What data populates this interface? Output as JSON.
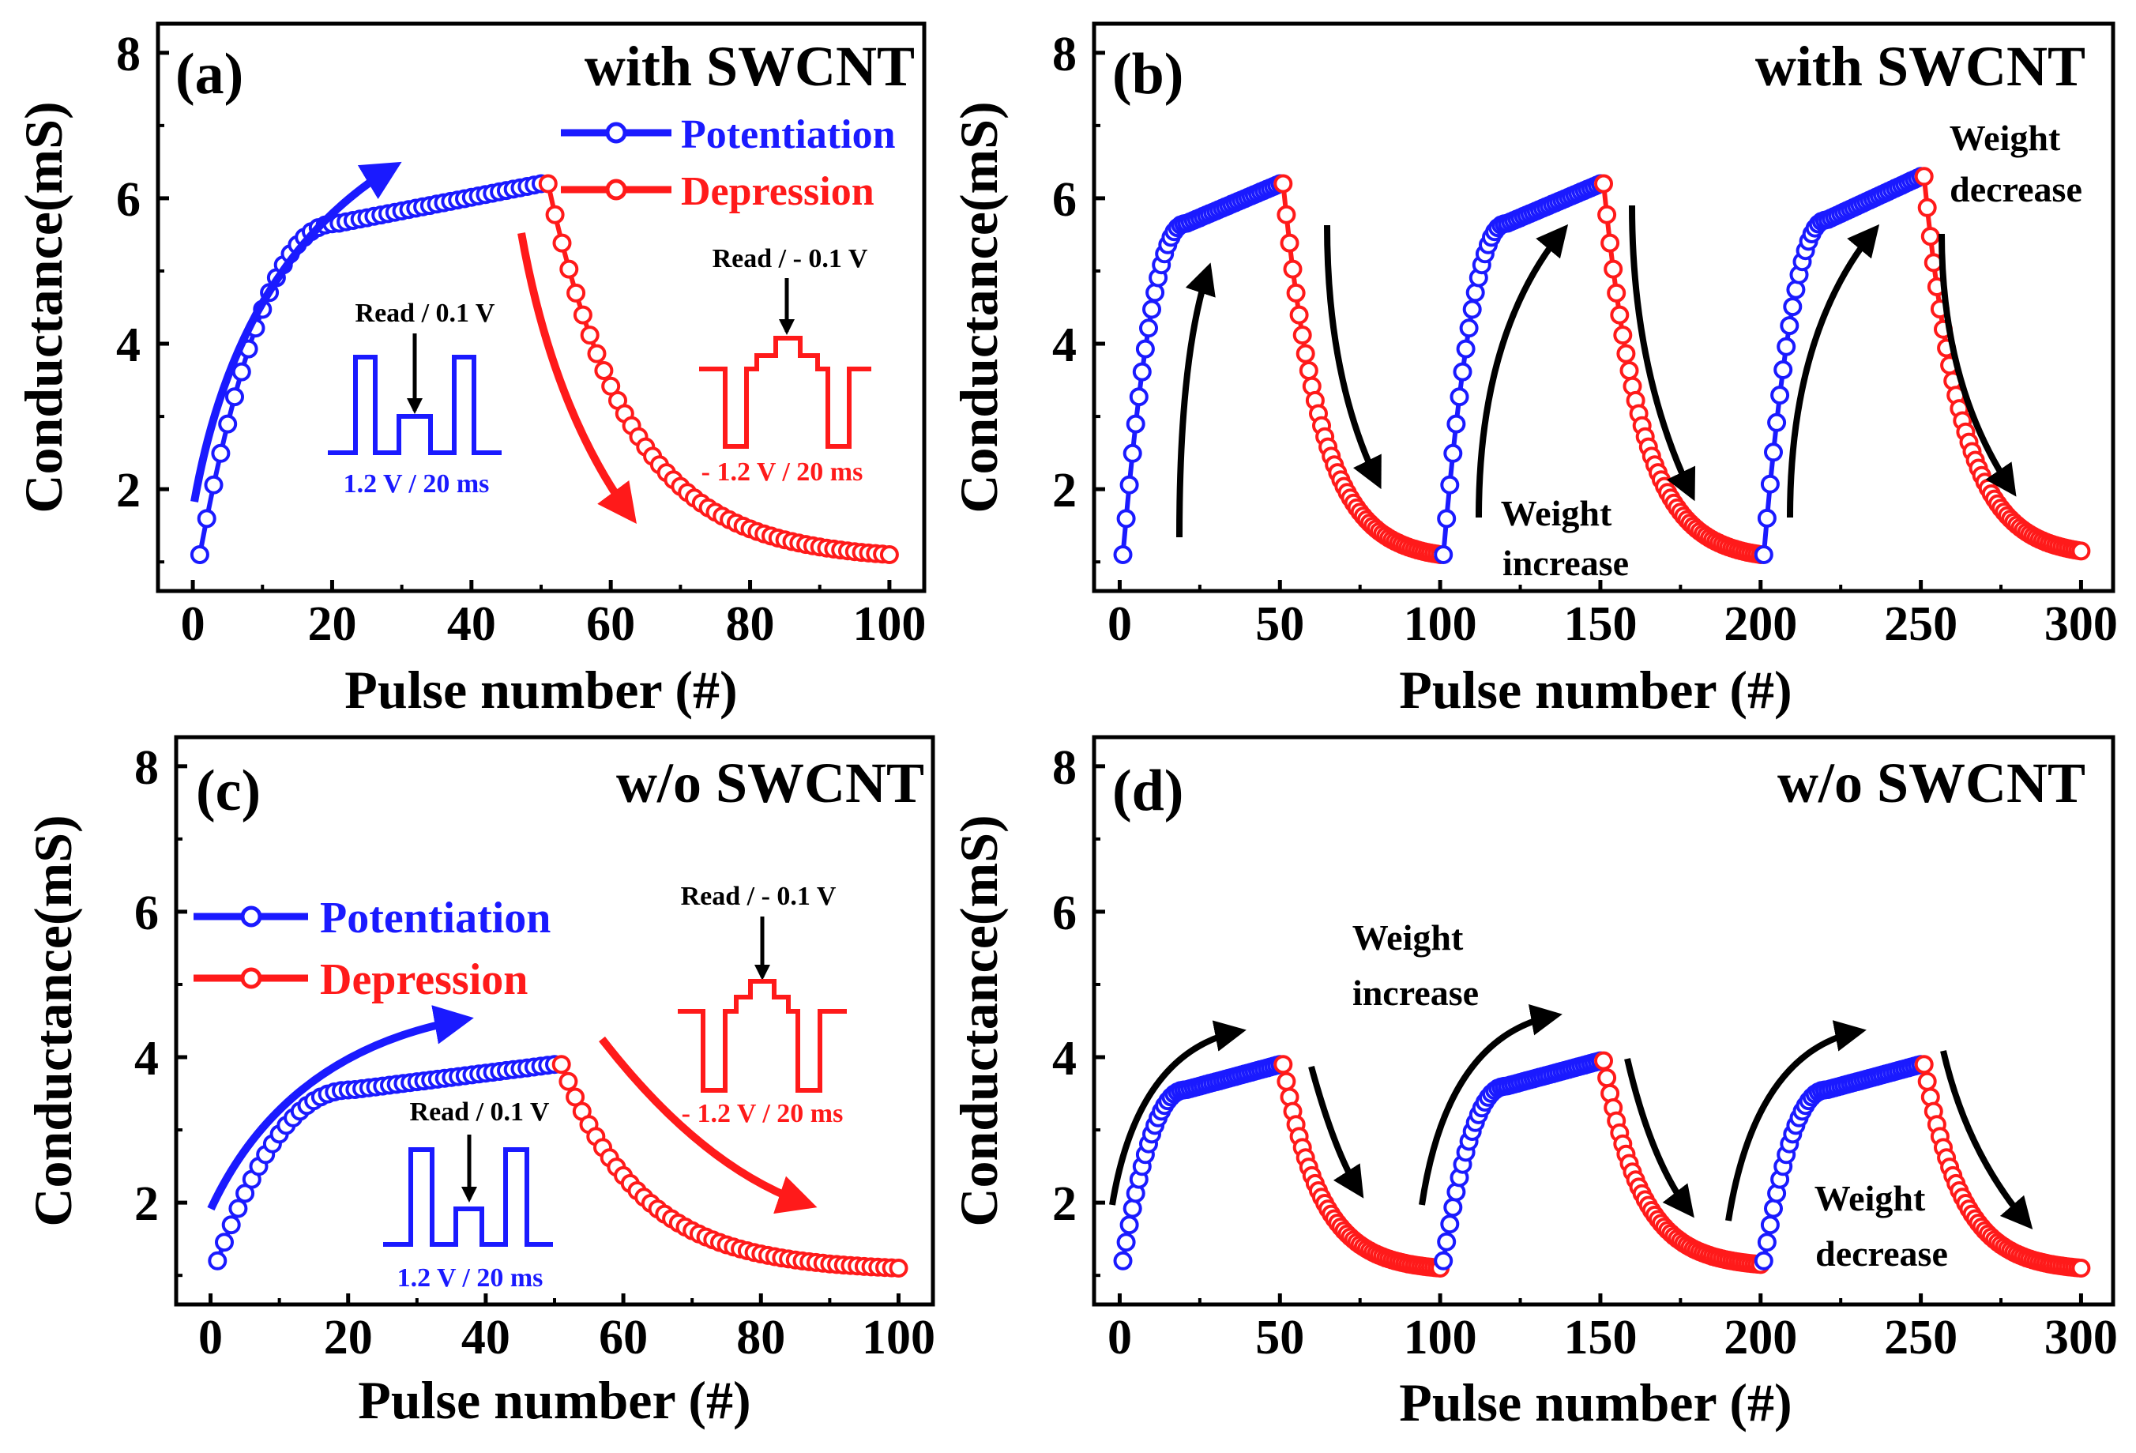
{
  "figure": {
    "colors": {
      "potentiation": "#1a1aff",
      "depression": "#ff1a1a",
      "axis": "#000000",
      "arrow_black": "#000000"
    }
  },
  "chart_data": [
    {
      "id": "a",
      "type": "line",
      "panel_label": "(a)",
      "title": "with SWCNT",
      "xlabel": "Pulse number (#)",
      "ylabel": "Conductance(mS)",
      "xlim": [
        -5,
        105
      ],
      "ylim": [
        0.6,
        8.4
      ],
      "xticks": [
        0,
        20,
        40,
        60,
        80,
        100
      ],
      "yticks": [
        2,
        4,
        6,
        8
      ],
      "legend": {
        "placement": "top-right",
        "entries": [
          "Potentiation",
          "Depression"
        ]
      },
      "series": [
        {
          "name": "Potentiation",
          "color": "#1a1aff",
          "model": "pot",
          "x_start": 1,
          "x_end": 50,
          "start": 1.1,
          "end": 6.2,
          "knee": 5.65
        },
        {
          "name": "Depression",
          "color": "#ff1a1a",
          "model": "dep",
          "x_start": 51,
          "x_end": 100,
          "start": 6.2,
          "end": 1.1
        }
      ],
      "annotations": {
        "pot_pulse": {
          "read": "Read / 0.1 V",
          "amp": "1.2 V / 20 ms"
        },
        "dep_pulse": {
          "read": "Read / - 0.1 V",
          "amp": "- 1.2 V / 20 ms"
        }
      }
    },
    {
      "id": "b",
      "type": "line",
      "panel_label": "(b)",
      "title": "with SWCNT",
      "xlabel": "Pulse number (#)",
      "ylabel": "Conductance(mS)",
      "xlim": [
        -8,
        310
      ],
      "ylim": [
        0.6,
        8.4
      ],
      "xticks": [
        0,
        50,
        100,
        150,
        200,
        250,
        300
      ],
      "yticks": [
        2,
        4,
        6,
        8
      ],
      "series": [
        {
          "name": "Potentiation cycle 1",
          "color": "#1a1aff",
          "model": "pot",
          "x_start": 1,
          "x_end": 50,
          "start": 1.1,
          "end": 6.2,
          "knee": 5.65
        },
        {
          "name": "Depression cycle 1",
          "color": "#ff1a1a",
          "model": "dep",
          "x_start": 51,
          "x_end": 100,
          "start": 6.2,
          "end": 1.1
        },
        {
          "name": "Potentiation cycle 2",
          "color": "#1a1aff",
          "model": "pot",
          "x_start": 101,
          "x_end": 150,
          "start": 1.1,
          "end": 6.2,
          "knee": 5.65
        },
        {
          "name": "Depression cycle 2",
          "color": "#ff1a1a",
          "model": "dep",
          "x_start": 151,
          "x_end": 200,
          "start": 6.2,
          "end": 1.1
        },
        {
          "name": "Potentiation cycle 3",
          "color": "#1a1aff",
          "model": "pot",
          "x_start": 201,
          "x_end": 250,
          "start": 1.1,
          "end": 6.3,
          "knee": 5.7
        },
        {
          "name": "Depression cycle 3",
          "color": "#ff1a1a",
          "model": "dep",
          "x_start": 251,
          "x_end": 300,
          "start": 6.3,
          "end": 1.15
        }
      ],
      "annotations": {
        "increase": [
          "Weight",
          "increase"
        ],
        "decrease": [
          "Weight",
          "decrease"
        ]
      }
    },
    {
      "id": "c",
      "type": "line",
      "panel_label": "(c)",
      "title": "w/o SWCNT",
      "xlabel": "Pulse number (#)",
      "ylabel": "Conductance(mS)",
      "xlim": [
        -5,
        105
      ],
      "ylim": [
        0.6,
        8.4
      ],
      "xticks": [
        0,
        20,
        40,
        60,
        80,
        100
      ],
      "yticks": [
        2,
        4,
        6,
        8
      ],
      "legend": {
        "placement": "middle-left",
        "entries": [
          "Potentiation",
          "Depression"
        ]
      },
      "series": [
        {
          "name": "Potentiation",
          "color": "#1a1aff",
          "model": "pot",
          "x_start": 1,
          "x_end": 50,
          "start": 1.2,
          "end": 3.9,
          "knee": 3.55
        },
        {
          "name": "Depression",
          "color": "#ff1a1a",
          "model": "dep",
          "x_start": 51,
          "x_end": 100,
          "start": 3.9,
          "end": 1.1
        }
      ],
      "annotations": {
        "pot_pulse": {
          "read": "Read / 0.1 V",
          "amp": "1.2 V / 20 ms"
        },
        "dep_pulse": {
          "read": "Read / - 0.1 V",
          "amp": "- 1.2 V / 20 ms"
        }
      }
    },
    {
      "id": "d",
      "type": "line",
      "panel_label": "(d)",
      "title": "w/o SWCNT",
      "xlabel": "Pulse number (#)",
      "ylabel": "Conductance(mS)",
      "xlim": [
        -8,
        310
      ],
      "ylim": [
        0.6,
        8.4
      ],
      "xticks": [
        0,
        50,
        100,
        150,
        200,
        250,
        300
      ],
      "yticks": [
        2,
        4,
        6,
        8
      ],
      "series": [
        {
          "name": "Potentiation cycle 1",
          "color": "#1a1aff",
          "model": "pot",
          "x_start": 1,
          "x_end": 50,
          "start": 1.2,
          "end": 3.9,
          "knee": 3.55
        },
        {
          "name": "Depression cycle 1",
          "color": "#ff1a1a",
          "model": "dep",
          "x_start": 51,
          "x_end": 100,
          "start": 3.9,
          "end": 1.1
        },
        {
          "name": "Potentiation cycle 2",
          "color": "#1a1aff",
          "model": "pot",
          "x_start": 101,
          "x_end": 150,
          "start": 1.2,
          "end": 3.95,
          "knee": 3.6
        },
        {
          "name": "Depression cycle 2",
          "color": "#ff1a1a",
          "model": "dep",
          "x_start": 151,
          "x_end": 200,
          "start": 3.95,
          "end": 1.15
        },
        {
          "name": "Potentiation cycle 3",
          "color": "#1a1aff",
          "model": "pot",
          "x_start": 201,
          "x_end": 250,
          "start": 1.2,
          "end": 3.9,
          "knee": 3.55
        },
        {
          "name": "Depression cycle 3",
          "color": "#ff1a1a",
          "model": "dep",
          "x_start": 251,
          "x_end": 300,
          "start": 3.9,
          "end": 1.1
        }
      ],
      "annotations": {
        "increase": [
          "Weight",
          "increase"
        ],
        "decrease": [
          "Weight",
          "decrease"
        ]
      }
    }
  ]
}
